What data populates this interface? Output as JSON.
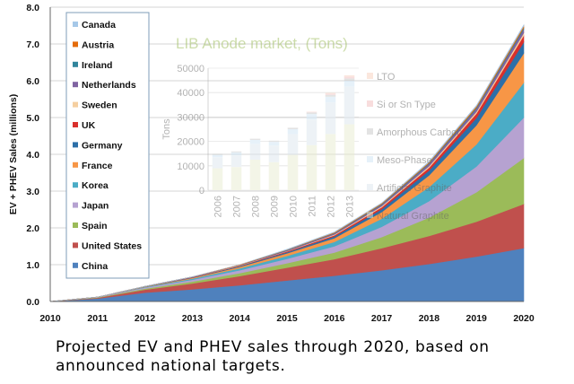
{
  "caption": "Projected EV and PHEV sales through 2020, based on announced national targets.",
  "chart_data": [
    {
      "type": "area",
      "stacked": true,
      "ylabel": "EV + PHEV Sales (millions)",
      "xlabel": "",
      "x": [
        2010,
        2011,
        2012,
        2013,
        2014,
        2015,
        2016,
        2017,
        2018,
        2019,
        2020
      ],
      "ylim": [
        0,
        8
      ],
      "yticks": [
        "0.0",
        "1.0",
        "2.0",
        "3.0",
        "4.0",
        "5.0",
        "6.0",
        "7.0",
        "8.0"
      ],
      "grid": true,
      "legend_position": "top-left",
      "series": [
        {
          "name": "China",
          "color": "#4f81bd",
          "values": [
            0.0,
            0.08,
            0.24,
            0.33,
            0.44,
            0.57,
            0.7,
            0.85,
            1.02,
            1.22,
            1.45
          ]
        },
        {
          "name": "United States",
          "color": "#c0504d",
          "values": [
            0.0,
            0.02,
            0.08,
            0.16,
            0.25,
            0.35,
            0.45,
            0.6,
            0.76,
            0.95,
            1.2
          ]
        },
        {
          "name": "Spain",
          "color": "#9bbb59",
          "values": [
            0.0,
            0.01,
            0.03,
            0.05,
            0.08,
            0.12,
            0.18,
            0.3,
            0.5,
            0.8,
            1.25
          ]
        },
        {
          "name": "Japan",
          "color": "#b6a2d1",
          "values": [
            0.0,
            0.01,
            0.03,
            0.05,
            0.08,
            0.12,
            0.17,
            0.28,
            0.45,
            0.7,
            1.1
          ]
        },
        {
          "name": "Korea",
          "color": "#4bacc6",
          "values": [
            0.0,
            0.0,
            0.01,
            0.03,
            0.05,
            0.08,
            0.12,
            0.22,
            0.38,
            0.6,
            0.95
          ]
        },
        {
          "name": "France",
          "color": "#f79646",
          "values": [
            0.0,
            0.0,
            0.01,
            0.02,
            0.04,
            0.07,
            0.1,
            0.18,
            0.32,
            0.52,
            0.8
          ]
        },
        {
          "name": "Germany",
          "color": "#2c6fa8",
          "values": [
            0.0,
            0.0,
            0.01,
            0.01,
            0.02,
            0.03,
            0.05,
            0.08,
            0.13,
            0.2,
            0.3
          ]
        },
        {
          "name": "UK",
          "color": "#d9302c",
          "values": [
            0.0,
            0.0,
            0.0,
            0.01,
            0.01,
            0.02,
            0.03,
            0.05,
            0.08,
            0.12,
            0.18
          ]
        },
        {
          "name": "Sweden",
          "color": "#f5cfa0",
          "values": [
            0.0,
            0.0,
            0.0,
            0.0,
            0.01,
            0.01,
            0.02,
            0.03,
            0.04,
            0.05,
            0.07
          ]
        },
        {
          "name": "Netherlands",
          "color": "#8064a2",
          "values": [
            0.0,
            0.0,
            0.0,
            0.01,
            0.01,
            0.02,
            0.03,
            0.04,
            0.06,
            0.08,
            0.1
          ]
        },
        {
          "name": "Ireland",
          "color": "#31859c",
          "values": [
            0.0,
            0.0,
            0.0,
            0.0,
            0.0,
            0.01,
            0.01,
            0.02,
            0.02,
            0.03,
            0.04
          ]
        },
        {
          "name": "Austria",
          "color": "#e46c0a",
          "values": [
            0.0,
            0.0,
            0.0,
            0.0,
            0.01,
            0.01,
            0.02,
            0.02,
            0.03,
            0.04,
            0.05
          ]
        },
        {
          "name": "Canada",
          "color": "#a6c8e8",
          "values": [
            0.0,
            0.0,
            0.0,
            0.0,
            0.0,
            0.01,
            0.01,
            0.01,
            0.02,
            0.02,
            0.03
          ]
        }
      ]
    },
    {
      "type": "bar",
      "stacked": true,
      "title": "LIB Anode market, (Tons)",
      "ylabel": "Tons",
      "categories": [
        "2006",
        "2007",
        "2008",
        "2009",
        "2010",
        "2011",
        "2012",
        "2013"
      ],
      "ylim": [
        0,
        50000
      ],
      "yticks": [
        "0",
        "10000",
        "20000",
        "30000",
        "40000",
        "50000"
      ],
      "legend_position": "right",
      "series": [
        {
          "name": "Natural Graphite",
          "color": "#e8ecd0",
          "values": [
            9000,
            9500,
            12500,
            11500,
            14500,
            18500,
            23000,
            27000
          ]
        },
        {
          "name": "Artificial Graphite",
          "color": "#dde6ee",
          "values": [
            4500,
            4800,
            6500,
            6800,
            8500,
            10500,
            13000,
            15500
          ]
        },
        {
          "name": "Meso-Phase",
          "color": "#cfe5f5",
          "values": [
            1000,
            1200,
            1600,
            1500,
            2000,
            2200,
            2300,
            2400
          ]
        },
        {
          "name": "Amorphous Carbon",
          "color": "#c8c8c8",
          "values": [
            400,
            400,
            500,
            500,
            600,
            700,
            800,
            900
          ]
        },
        {
          "name": "Si or Sn Type",
          "color": "#f2bcbc",
          "values": [
            0,
            0,
            0,
            0,
            0,
            200,
            500,
            800
          ]
        },
        {
          "name": "LTO",
          "color": "#f8d0bc",
          "values": [
            0,
            0,
            0,
            0,
            0,
            100,
            300,
            500
          ]
        }
      ]
    }
  ]
}
